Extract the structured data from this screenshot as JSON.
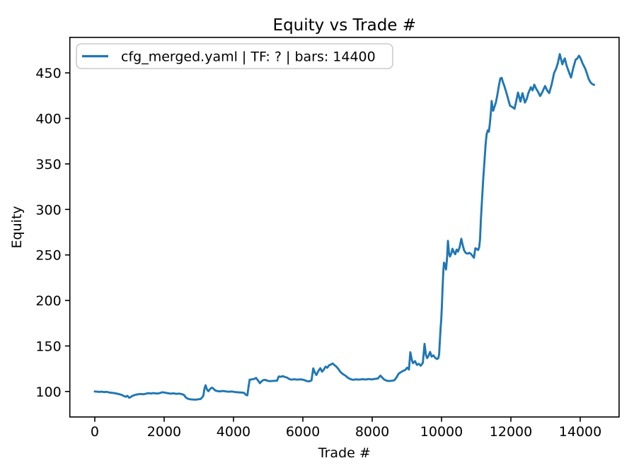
{
  "chart_data": {
    "type": "line",
    "title": "Equity vs Trade #",
    "xlabel": "Trade #",
    "ylabel": "Equity",
    "xlim": [
      -720,
      15120
    ],
    "ylim": [
      72,
      489
    ],
    "xticks": [
      0,
      2000,
      4000,
      6000,
      8000,
      10000,
      12000,
      14000
    ],
    "yticks": [
      100,
      150,
      200,
      250,
      300,
      350,
      400,
      450
    ],
    "grid": false,
    "legend_position": "upper left",
    "line_color": "#1f77b4",
    "axis_color": "#000000",
    "legend_border_color": "#cccccc",
    "series": [
      {
        "name": "cfg_merged.yaml | TF: ? | bars: 14400",
        "points": [
          [
            0,
            100
          ],
          [
            60,
            99.8
          ],
          [
            130,
            99.5
          ],
          [
            200,
            99.8
          ],
          [
            270,
            99.3
          ],
          [
            340,
            99.6
          ],
          [
            410,
            99.0
          ],
          [
            480,
            98.6
          ],
          [
            550,
            98.3
          ],
          [
            620,
            97.8
          ],
          [
            700,
            97.1
          ],
          [
            780,
            96.2
          ],
          [
            840,
            95.0
          ],
          [
            890,
            94.2
          ],
          [
            940,
            95.2
          ],
          [
            990,
            93.2
          ],
          [
            1030,
            93.7
          ],
          [
            1070,
            94.9
          ],
          [
            1120,
            95.7
          ],
          [
            1180,
            96.4
          ],
          [
            1250,
            96.9
          ],
          [
            1320,
            97.3
          ],
          [
            1390,
            96.9
          ],
          [
            1460,
            97.4
          ],
          [
            1540,
            98.2
          ],
          [
            1620,
            97.8
          ],
          [
            1700,
            98.3
          ],
          [
            1790,
            97.7
          ],
          [
            1880,
            98.3
          ],
          [
            1950,
            99.2
          ],
          [
            2030,
            98.7
          ],
          [
            2110,
            98.1
          ],
          [
            2190,
            97.6
          ],
          [
            2270,
            98.0
          ],
          [
            2350,
            97.4
          ],
          [
            2430,
            97.7
          ],
          [
            2510,
            97.1
          ],
          [
            2570,
            96.3
          ],
          [
            2620,
            93.6
          ],
          [
            2680,
            92.1
          ],
          [
            2740,
            91.5
          ],
          [
            2820,
            91.2
          ],
          [
            2900,
            91.0
          ],
          [
            2980,
            91.4
          ],
          [
            3060,
            91.9
          ],
          [
            3130,
            95.2
          ],
          [
            3165,
            103.6
          ],
          [
            3195,
            106.9
          ],
          [
            3235,
            102.2
          ],
          [
            3275,
            100.3
          ],
          [
            3325,
            102.7
          ],
          [
            3375,
            104.3
          ],
          [
            3425,
            103.0
          ],
          [
            3475,
            101.1
          ],
          [
            3540,
            100.4
          ],
          [
            3610,
            100.0
          ],
          [
            3690,
            100.6
          ],
          [
            3770,
            100.1
          ],
          [
            3860,
            99.7
          ],
          [
            3950,
            100.0
          ],
          [
            4040,
            99.4
          ],
          [
            4130,
            99.1
          ],
          [
            4220,
            98.9
          ],
          [
            4300,
            98.6
          ],
          [
            4360,
            96.3
          ],
          [
            4400,
            95.8
          ],
          [
            4430,
            104.2
          ],
          [
            4465,
            112.9
          ],
          [
            4530,
            113.3
          ],
          [
            4590,
            113.7
          ],
          [
            4650,
            114.9
          ],
          [
            4705,
            112.2
          ],
          [
            4760,
            109.1
          ],
          [
            4805,
            110.9
          ],
          [
            4855,
            112.5
          ],
          [
            4915,
            112.8
          ],
          [
            4975,
            111.8
          ],
          [
            5060,
            111.4
          ],
          [
            5160,
            111.7
          ],
          [
            5255,
            111.9
          ],
          [
            5305,
            116.5
          ],
          [
            5365,
            116.1
          ],
          [
            5425,
            116.9
          ],
          [
            5485,
            115.8
          ],
          [
            5545,
            115.3
          ],
          [
            5605,
            113.7
          ],
          [
            5670,
            113.0
          ],
          [
            5750,
            113.4
          ],
          [
            5840,
            113.0
          ],
          [
            5930,
            113.3
          ],
          [
            6020,
            112.8
          ],
          [
            6110,
            111.5
          ],
          [
            6190,
            111.1
          ],
          [
            6250,
            112.2
          ],
          [
            6300,
            125.4
          ],
          [
            6345,
            120.9
          ],
          [
            6390,
            118.1
          ],
          [
            6450,
            122.6
          ],
          [
            6505,
            125.6
          ],
          [
            6555,
            121.7
          ],
          [
            6605,
            124.1
          ],
          [
            6655,
            127.3
          ],
          [
            6705,
            126.1
          ],
          [
            6755,
            128.7
          ],
          [
            6805,
            129.5
          ],
          [
            6860,
            130.8
          ],
          [
            6915,
            128.8
          ],
          [
            6965,
            127.4
          ],
          [
            7025,
            124.7
          ],
          [
            7085,
            121.4
          ],
          [
            7155,
            119.1
          ],
          [
            7225,
            117.5
          ],
          [
            7295,
            115.2
          ],
          [
            7365,
            113.7
          ],
          [
            7445,
            112.8
          ],
          [
            7535,
            113.3
          ],
          [
            7625,
            113.0
          ],
          [
            7715,
            113.5
          ],
          [
            7805,
            113.1
          ],
          [
            7895,
            113.7
          ],
          [
            7985,
            113.2
          ],
          [
            8075,
            113.8
          ],
          [
            8165,
            114.3
          ],
          [
            8235,
            117.4
          ],
          [
            8285,
            115.5
          ],
          [
            8345,
            113.1
          ],
          [
            8410,
            112.0
          ],
          [
            8480,
            111.5
          ],
          [
            8560,
            111.8
          ],
          [
            8640,
            112.3
          ],
          [
            8705,
            115.7
          ],
          [
            8765,
            119.7
          ],
          [
            8825,
            121.1
          ],
          [
            8890,
            122.7
          ],
          [
            8950,
            123.5
          ],
          [
            9010,
            126.2
          ],
          [
            9060,
            124.1
          ],
          [
            9100,
            143.1
          ],
          [
            9140,
            135.4
          ],
          [
            9175,
            131.1
          ],
          [
            9235,
            133.3
          ],
          [
            9290,
            129.2
          ],
          [
            9345,
            130.5
          ],
          [
            9400,
            128.3
          ],
          [
            9460,
            131.4
          ],
          [
            9510,
            152.3
          ],
          [
            9550,
            140.1
          ],
          [
            9585,
            136.7
          ],
          [
            9625,
            139.1
          ],
          [
            9670,
            143.5
          ],
          [
            9715,
            138.3
          ],
          [
            9765,
            139.7
          ],
          [
            9815,
            137.1
          ],
          [
            9865,
            135.7
          ],
          [
            9905,
            136.4
          ],
          [
            9930,
            140.5
          ],
          [
            9945,
            151
          ],
          [
            9960,
            161
          ],
          [
            9975,
            171
          ],
          [
            9990,
            178
          ],
          [
            10010,
            194
          ],
          [
            10030,
            214
          ],
          [
            10050,
            231
          ],
          [
            10070,
            241.5
          ],
          [
            10100,
            239.5
          ],
          [
            10130,
            234
          ],
          [
            10160,
            247
          ],
          [
            10185,
            265.5
          ],
          [
            10215,
            252
          ],
          [
            10245,
            248.3
          ],
          [
            10285,
            252.2
          ],
          [
            10315,
            256.8
          ],
          [
            10355,
            253.1
          ],
          [
            10395,
            250.8
          ],
          [
            10435,
            255.9
          ],
          [
            10475,
            253.7
          ],
          [
            10520,
            258.2
          ],
          [
            10570,
            267.8
          ],
          [
            10605,
            261.7
          ],
          [
            10650,
            255.2
          ],
          [
            10700,
            252.1
          ],
          [
            10755,
            251.4
          ],
          [
            10805,
            252.3
          ],
          [
            10855,
            250.8
          ],
          [
            10905,
            248.4
          ],
          [
            10935,
            246.9
          ],
          [
            10975,
            257.4
          ],
          [
            11015,
            256.6
          ],
          [
            11055,
            255.4
          ],
          [
            11085,
            258.3
          ],
          [
            11110,
            267
          ],
          [
            11135,
            289
          ],
          [
            11165,
            309
          ],
          [
            11200,
            332
          ],
          [
            11240,
            354
          ],
          [
            11270,
            371
          ],
          [
            11300,
            382.5
          ],
          [
            11335,
            387
          ],
          [
            11365,
            385.4
          ],
          [
            11395,
            394.8
          ],
          [
            11425,
            407.6
          ],
          [
            11445,
            419.2
          ],
          [
            11465,
            413.1
          ],
          [
            11490,
            408.4
          ],
          [
            11525,
            412.7
          ],
          [
            11565,
            417.2
          ],
          [
            11605,
            424.8
          ],
          [
            11655,
            436.1
          ],
          [
            11695,
            443.8
          ],
          [
            11735,
            444.6
          ],
          [
            11770,
            439.8
          ],
          [
            11810,
            435.7
          ],
          [
            11860,
            429.6
          ],
          [
            11925,
            420.8
          ],
          [
            11975,
            413.9
          ],
          [
            12045,
            412.4
          ],
          [
            12105,
            410.6
          ],
          [
            12155,
            419.1
          ],
          [
            12205,
            428.4
          ],
          [
            12245,
            422.9
          ],
          [
            12275,
            418.4
          ],
          [
            12335,
            427.7
          ],
          [
            12375,
            421.8
          ],
          [
            12405,
            417.4
          ],
          [
            12455,
            421.2
          ],
          [
            12505,
            427.9
          ],
          [
            12575,
            434.2
          ],
          [
            12625,
            430.8
          ],
          [
            12675,
            437.1
          ],
          [
            12725,
            432.9
          ],
          [
            12775,
            429.7
          ],
          [
            12845,
            424.6
          ],
          [
            12905,
            428.8
          ],
          [
            12985,
            435.6
          ],
          [
            13045,
            430.9
          ],
          [
            13105,
            427.8
          ],
          [
            13175,
            437.2
          ],
          [
            13245,
            449.8
          ],
          [
            13305,
            454.7
          ],
          [
            13355,
            460.8
          ],
          [
            13410,
            470.6
          ],
          [
            13455,
            463.8
          ],
          [
            13485,
            459.4
          ],
          [
            13525,
            463.7
          ],
          [
            13555,
            465.9
          ],
          [
            13605,
            458.2
          ],
          [
            13675,
            450.8
          ],
          [
            13735,
            444.9
          ],
          [
            13795,
            454.8
          ],
          [
            13865,
            464.4
          ],
          [
            13915,
            465.8
          ],
          [
            13965,
            468.9
          ],
          [
            14005,
            466.4
          ],
          [
            14065,
            460.7
          ],
          [
            14145,
            454.6
          ],
          [
            14205,
            447.9
          ],
          [
            14245,
            443.2
          ],
          [
            14305,
            439.1
          ],
          [
            14355,
            437.6
          ],
          [
            14400,
            436.8
          ]
        ]
      }
    ]
  }
}
